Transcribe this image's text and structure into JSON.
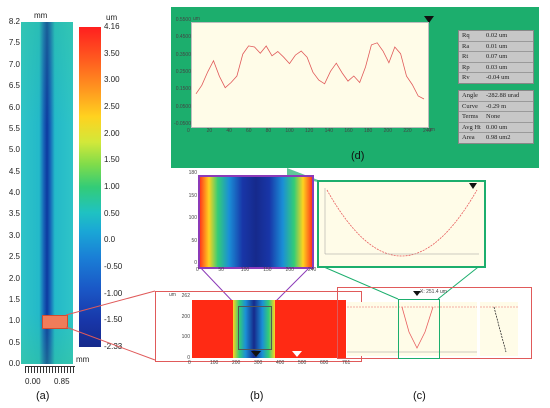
{
  "panel_a": {
    "unit_top": "mm",
    "y_ticks": [
      "8.2",
      "7.5",
      "7.0",
      "6.5",
      "6.0",
      "5.5",
      "5.0",
      "4.5",
      "4.0",
      "3.5",
      "3.0",
      "2.5",
      "2.0",
      "1.5",
      "1.0",
      "0.5",
      "0.0"
    ],
    "x_ticks": [
      "0.00",
      "0.85"
    ],
    "x_unit": "mm",
    "caption": "(a)"
  },
  "colorbar": {
    "unit": "um",
    "ticks": [
      "4.16",
      "3.50",
      "3.00",
      "2.50",
      "2.00",
      "1.50",
      "1.00",
      "0.50",
      "0.0",
      "-0.50",
      "-1.00",
      "-1.50",
      "-2.33"
    ]
  },
  "panel_d": {
    "caption": "(d)",
    "y_unit": "um",
    "x_unit": "um",
    "y_ticks": [
      "0.5500",
      "0.4500",
      "0.3500",
      "0.2500",
      "0.1500",
      "0.0500",
      "-0.0500"
    ],
    "x_ticks": [
      "0",
      "20",
      "40",
      "60",
      "80",
      "100",
      "120",
      "140",
      "160",
      "180",
      "200",
      "220",
      "240"
    ],
    "stats1": [
      {
        "k": "Rq",
        "v": "0.02  um"
      },
      {
        "k": "Ra",
        "v": "0.01  um"
      },
      {
        "k": "Rt",
        "v": "0.07  um"
      },
      {
        "k": "Rp",
        "v": "0.03  um"
      },
      {
        "k": "Rv",
        "v": "-0.04  um"
      }
    ],
    "stats2": [
      {
        "k": "Angle",
        "v": "-282.88  urad"
      },
      {
        "k": "Curve",
        "v": "-0.29  m"
      },
      {
        "k": "Terms",
        "v": "None"
      },
      {
        "k": "Avg Ht",
        "v": "0.00  um"
      },
      {
        "k": "Area",
        "v": "0.98  um2"
      }
    ]
  },
  "panel_b": {
    "caption": "(b)",
    "top_y_ticks": [
      "180",
      "150",
      "100",
      "50",
      "0"
    ],
    "top_x_ticks": [
      "0",
      "50",
      "100",
      "150",
      "200",
      "240"
    ],
    "bottom_y_unit": "um",
    "bottom_y_ticks": [
      "262",
      "200",
      "100",
      "0"
    ],
    "bottom_x_ticks": [
      "0",
      "100",
      "200",
      "300",
      "400",
      "500",
      "600",
      "761"
    ]
  },
  "panel_c": {
    "caption": "(c)",
    "readout": "X: 251.4 um"
  }
}
